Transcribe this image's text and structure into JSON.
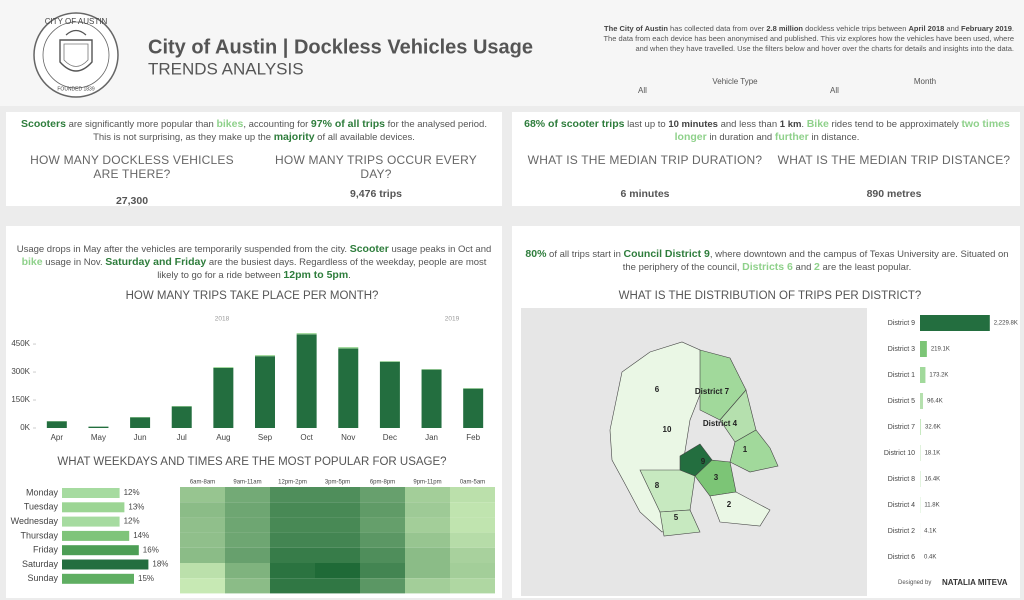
{
  "header": {
    "logo_top": "CITY OF AUSTIN",
    "logo_bottom": "FOUNDED 1839",
    "title": "City of Austin | Dockless Vehicles Usage",
    "subtitle": "TRENDS ANALYSIS",
    "description": [
      {
        "text": "The City of Austin",
        "style": "bold"
      },
      " has collected data from over ",
      {
        "text": "2.8 million",
        "style": "bold"
      },
      " dockless vehicle trips between ",
      {
        "text": "April 2018",
        "style": "bold"
      },
      " and ",
      {
        "text": "February 2019",
        "style": "bold"
      },
      ". The data from each device has been anonymised and published. This viz explores how the vehicles have been used, where and when they have travelled. Use the filters below and hover over the charts for details and insights into the data."
    ],
    "filters": [
      {
        "label": "Vehicle Type",
        "value": "All"
      },
      {
        "label": "Month",
        "value": "All"
      }
    ]
  },
  "panels": [
    {
      "text": [
        {
          "text": "Scooters",
          "style": "green"
        },
        " are significantly more popular than ",
        {
          "text": "bikes",
          "style": "light"
        },
        ", accounting for ",
        {
          "text": "97% of all trips",
          "style": "green"
        },
        " for the analysed period. This is not surprising, as they make up the ",
        {
          "text": "majority",
          "style": "green"
        },
        " of all available devices."
      ],
      "kpis": [
        {
          "question": "HOW MANY DOCKLESS VEHICLES ARE THERE?",
          "answer": "27,300"
        },
        {
          "question": "HOW MANY TRIPS OCCUR EVERY DAY?",
          "answer": "9,476 trips"
        }
      ]
    },
    {
      "text": [
        {
          "text": "68% of scooter trips",
          "style": "green"
        },
        " last up to ",
        {
          "text": "10 minutes",
          "style": "bold"
        },
        " and less than ",
        {
          "text": "1 km",
          "style": "bold"
        },
        ". ",
        {
          "text": "Bike",
          "style": "light"
        },
        " rides tend to be approximately ",
        {
          "text": "two times longer",
          "style": "light"
        },
        " in duration and ",
        {
          "text": "further",
          "style": "light"
        },
        " in distance."
      ],
      "kpis": [
        {
          "question": "WHAT IS THE MEDIAN TRIP DURATION?",
          "answer": "6 minutes"
        },
        {
          "question": "WHAT IS THE MEDIAN TRIP DISTANCE?",
          "answer": "890 metres"
        }
      ]
    },
    {
      "text": [
        "Usage drops in May after the vehicles are temporarily suspended from the city. ",
        {
          "text": "Scooter",
          "style": "green"
        },
        " usage peaks in Oct and ",
        {
          "text": "bike",
          "style": "light"
        },
        " usage in Nov. ",
        {
          "text": "Saturday and Friday",
          "style": "green"
        },
        " are the busiest days. Regardless of the weekday, people are most likely to go for a ride between ",
        {
          "text": "12pm to 5pm",
          "style": "green"
        },
        "."
      ]
    },
    {
      "text": [
        {
          "text": "80%",
          "style": "green"
        },
        " of all trips start in ",
        {
          "text": "Council District 9",
          "style": "green"
        },
        ", where downtown and the campus of Texas University are. Situated on the periphery of the council, ",
        {
          "text": "Districts 6",
          "style": "light"
        },
        " and ",
        {
          "text": "2",
          "style": "light"
        },
        " are the least popular."
      ]
    }
  ],
  "chart_data": [
    {
      "type": "bar",
      "stacked": true,
      "title": "HOW MANY TRIPS TAKE PLACE PER MONTH?",
      "year_labels": [
        "2018",
        "2019"
      ],
      "categories": [
        "Apr",
        "May",
        "Jun",
        "Jul",
        "Aug",
        "Sep",
        "Oct",
        "Nov",
        "Dec",
        "Jan",
        "Feb"
      ],
      "series": [
        {
          "color": "#236e3f",
          "values": [
            36000,
            7500,
            57000,
            115000,
            322000,
            385000,
            502000,
            426000,
            355000,
            313000,
            211000
          ]
        },
        {
          "color": "#a1d99b",
          "values": [
            1500,
            500,
            2000,
            3000,
            5000,
            6000,
            7000,
            8000,
            4000,
            3000,
            3000
          ]
        }
      ],
      "ylim": [
        0,
        520000
      ],
      "yticks": [
        {
          "value": 0,
          "label": "0K"
        },
        {
          "value": 150000,
          "label": "150K"
        },
        {
          "value": 300000,
          "label": "300K"
        },
        {
          "value": 450000,
          "label": "450K"
        }
      ]
    },
    {
      "type": "bar",
      "orientation": "horizontal",
      "title": "WHAT WEEKDAYS AND TIMES ARE THE MOST POPULAR FOR USAGE?",
      "categories": [
        "Monday",
        "Tuesday",
        "Wednesday",
        "Thursday",
        "Friday",
        "Saturday",
        "Sunday"
      ],
      "values": [
        12,
        13,
        12,
        14,
        16,
        18,
        15
      ],
      "value_labels": [
        "12%",
        "13%",
        "12%",
        "14%",
        "16%",
        "18%",
        "15%"
      ],
      "colors": [
        "#a6dba0",
        "#9cd594",
        "#a6dba0",
        "#7fc47a",
        "#4d9e55",
        "#236e3f",
        "#5fae62"
      ],
      "xlim": [
        0,
        20
      ]
    },
    {
      "type": "heatmap",
      "columns": [
        "6am-8am",
        "9am-11am",
        "12pm-2pm",
        "3pm-5pm",
        "6pm-8pm",
        "9pm-11pm",
        "0am-5am"
      ],
      "values": [
        [
          45,
          60,
          75,
          75,
          65,
          40,
          30
        ],
        [
          50,
          62,
          78,
          78,
          68,
          42,
          28
        ],
        [
          48,
          62,
          78,
          78,
          66,
          40,
          28
        ],
        [
          48,
          62,
          80,
          80,
          70,
          45,
          32
        ],
        [
          50,
          65,
          85,
          85,
          75,
          50,
          38
        ],
        [
          30,
          55,
          90,
          95,
          80,
          50,
          40
        ],
        [
          25,
          50,
          88,
          88,
          70,
          40,
          35
        ]
      ],
      "color_low": "#c7e9b4",
      "color_high": "#1f6a37"
    },
    {
      "type": "bar",
      "orientation": "horizontal",
      "title": "WHAT IS THE DISTRIBUTION OF TRIPS PER DISTRICT?",
      "categories": [
        "District 9",
        "District 3",
        "District 1",
        "District 5",
        "District 7",
        "District 10",
        "District 8",
        "District 4",
        "District 2",
        "District 6"
      ],
      "values": [
        2229800,
        219100,
        173200,
        96400,
        32600,
        18100,
        16400,
        11800,
        4100,
        400
      ],
      "value_labels": [
        "2,229.8K",
        "219.1K",
        "173.2K",
        "96.4K",
        "32.6K",
        "18.1K",
        "16.4K",
        "11.8K",
        "4.1K",
        "0.4K"
      ],
      "colors": [
        "#236e3f",
        "#7cc576",
        "#a1d99b",
        "#b5e0ae",
        "#c7e9c0",
        "#c7e9c0",
        "#c7e9c0",
        "#c7e9c0",
        "#d9f0d3",
        "#d9f0d3"
      ],
      "xlim": [
        0,
        2300000
      ]
    }
  ],
  "map": {
    "labels": [
      "6",
      "District 7",
      "District 4",
      "10",
      "9",
      "1",
      "3",
      "8",
      "2",
      "5"
    ]
  },
  "footer": {
    "prefix": "Designed by",
    "author": "NATALIA MITEVA"
  }
}
